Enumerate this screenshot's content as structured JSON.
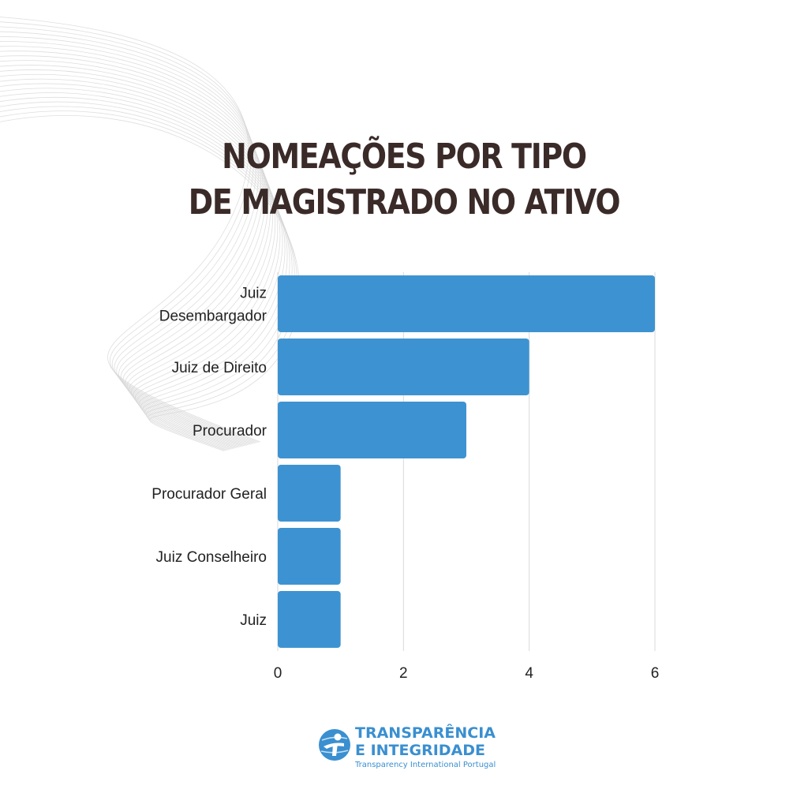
{
  "title": {
    "line1": "NOMEAÇÕES POR TIPO",
    "line2": "DE MAGISTRADO NO ATIVO"
  },
  "colors": {
    "bar": "#3d93d1",
    "title": "#3a2a28",
    "grid": "#d9d9d9",
    "brand": "#3a8fd0"
  },
  "chart_data": {
    "type": "bar",
    "orientation": "horizontal",
    "categories": [
      [
        "Juiz",
        "Desembargador"
      ],
      [
        "Juiz de Direito"
      ],
      [
        "Procurador"
      ],
      [
        "Procurador Geral"
      ],
      [
        "Juiz Conselheiro"
      ],
      [
        "Juiz"
      ]
    ],
    "values": [
      6,
      4,
      3,
      1,
      1,
      1
    ],
    "xlim": [
      0,
      6
    ],
    "xticks": [
      0,
      2,
      4,
      6
    ],
    "grid": "vertical"
  },
  "logo": {
    "line1": "TRANSPARÊNCIA",
    "line2": "E INTEGRIDADE",
    "subtitle": "Transparency International Portugal",
    "icon": "ti-globe-figure-icon"
  }
}
